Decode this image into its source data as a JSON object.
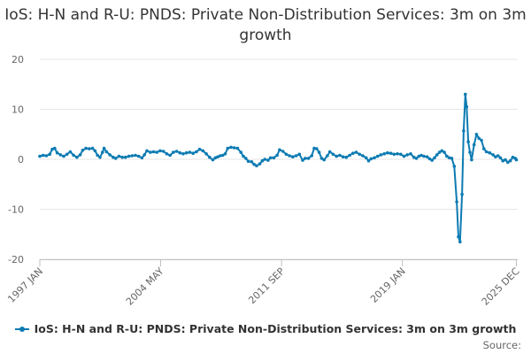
{
  "chart_data": {
    "type": "line",
    "title": "IoS: H-N and R-U: PNDS: Private Non-Distribution Services: 3m on 3m growth",
    "xlabel": "",
    "ylabel": "",
    "ylim": [
      -20,
      20
    ],
    "yticks": [
      -20,
      -10,
      0,
      10,
      20
    ],
    "x_range": [
      1997.0,
      2026.0
    ],
    "xticks": [
      {
        "label": "1997 JAN",
        "value": 1997.0
      },
      {
        "label": "2004 MAY",
        "value": 2004.33
      },
      {
        "label": "2011 SEP",
        "value": 2011.67
      },
      {
        "label": "2019 JAN",
        "value": 2019.0
      },
      {
        "label": "2025 DEC",
        "value": 2025.92
      }
    ],
    "series": [
      {
        "name": "IoS: H-N and R-U: PNDS: Private Non-Distribution Services: 3m on 3m growth",
        "color": "#0d7bb2",
        "points": [
          [
            1997.0,
            0.6
          ],
          [
            1997.2,
            0.8
          ],
          [
            1997.4,
            0.7
          ],
          [
            1997.6,
            1.0
          ],
          [
            1997.75,
            2.0
          ],
          [
            1997.9,
            2.2
          ],
          [
            1998.05,
            1.3
          ],
          [
            1998.25,
            0.9
          ],
          [
            1998.45,
            0.6
          ],
          [
            1998.65,
            1.0
          ],
          [
            1998.85,
            1.5
          ],
          [
            1999.05,
            0.8
          ],
          [
            1999.25,
            0.4
          ],
          [
            1999.45,
            0.9
          ],
          [
            1999.6,
            1.8
          ],
          [
            1999.8,
            2.2
          ],
          [
            2000.0,
            2.1
          ],
          [
            2000.2,
            2.2
          ],
          [
            2000.35,
            1.7
          ],
          [
            2000.5,
            0.8
          ],
          [
            2000.65,
            0.4
          ],
          [
            2000.8,
            1.4
          ],
          [
            2000.9,
            2.2
          ],
          [
            2001.05,
            1.5
          ],
          [
            2001.25,
            0.9
          ],
          [
            2001.45,
            0.4
          ],
          [
            2001.6,
            0.2
          ],
          [
            2001.8,
            0.6
          ],
          [
            2002.0,
            0.4
          ],
          [
            2002.2,
            0.4
          ],
          [
            2002.4,
            0.6
          ],
          [
            2002.6,
            0.7
          ],
          [
            2002.8,
            0.8
          ],
          [
            2003.0,
            0.6
          ],
          [
            2003.2,
            0.3
          ],
          [
            2003.35,
            0.9
          ],
          [
            2003.5,
            1.7
          ],
          [
            2003.7,
            1.4
          ],
          [
            2003.9,
            1.5
          ],
          [
            2004.1,
            1.4
          ],
          [
            2004.3,
            1.7
          ],
          [
            2004.5,
            1.6
          ],
          [
            2004.7,
            1.1
          ],
          [
            2004.9,
            0.8
          ],
          [
            2005.1,
            1.4
          ],
          [
            2005.3,
            1.6
          ],
          [
            2005.5,
            1.3
          ],
          [
            2005.7,
            1.1
          ],
          [
            2005.9,
            1.3
          ],
          [
            2006.1,
            1.4
          ],
          [
            2006.3,
            1.2
          ],
          [
            2006.5,
            1.5
          ],
          [
            2006.7,
            2.0
          ],
          [
            2006.9,
            1.7
          ],
          [
            2007.1,
            1.1
          ],
          [
            2007.3,
            0.4
          ],
          [
            2007.5,
            -0.1
          ],
          [
            2007.65,
            0.3
          ],
          [
            2007.8,
            0.5
          ],
          [
            2007.95,
            0.7
          ],
          [
            2008.1,
            0.8
          ],
          [
            2008.25,
            1.1
          ],
          [
            2008.4,
            2.2
          ],
          [
            2008.6,
            2.4
          ],
          [
            2008.8,
            2.3
          ],
          [
            2009.0,
            2.2
          ],
          [
            2009.2,
            1.4
          ],
          [
            2009.35,
            0.6
          ],
          [
            2009.5,
            0.2
          ],
          [
            2009.65,
            -0.4
          ],
          [
            2009.85,
            -0.5
          ],
          [
            2010.0,
            -1.0
          ],
          [
            2010.15,
            -1.3
          ],
          [
            2010.35,
            -0.9
          ],
          [
            2010.5,
            -0.3
          ],
          [
            2010.65,
            0.0
          ],
          [
            2010.85,
            -0.2
          ],
          [
            2011.0,
            0.3
          ],
          [
            2011.2,
            0.3
          ],
          [
            2011.4,
            0.8
          ],
          [
            2011.55,
            1.9
          ],
          [
            2011.75,
            1.6
          ],
          [
            2011.95,
            1.0
          ],
          [
            2012.15,
            0.7
          ],
          [
            2012.35,
            0.5
          ],
          [
            2012.55,
            0.7
          ],
          [
            2012.75,
            1.0
          ],
          [
            2012.95,
            -0.2
          ],
          [
            2013.1,
            0.2
          ],
          [
            2013.3,
            0.2
          ],
          [
            2013.5,
            0.7
          ],
          [
            2013.65,
            2.2
          ],
          [
            2013.8,
            2.1
          ],
          [
            2013.95,
            1.4
          ],
          [
            2014.1,
            0.2
          ],
          [
            2014.25,
            -0.1
          ],
          [
            2014.45,
            0.7
          ],
          [
            2014.6,
            1.5
          ],
          [
            2014.8,
            1.0
          ],
          [
            2015.0,
            0.6
          ],
          [
            2015.2,
            0.8
          ],
          [
            2015.4,
            0.5
          ],
          [
            2015.6,
            0.4
          ],
          [
            2015.8,
            0.8
          ],
          [
            2016.0,
            1.2
          ],
          [
            2016.2,
            1.4
          ],
          [
            2016.4,
            1.0
          ],
          [
            2016.6,
            0.7
          ],
          [
            2016.8,
            0.3
          ],
          [
            2016.95,
            -0.3
          ],
          [
            2017.1,
            0.1
          ],
          [
            2017.3,
            0.3
          ],
          [
            2017.5,
            0.6
          ],
          [
            2017.7,
            0.9
          ],
          [
            2017.9,
            1.1
          ],
          [
            2018.1,
            1.3
          ],
          [
            2018.3,
            1.2
          ],
          [
            2018.5,
            1.0
          ],
          [
            2018.7,
            1.1
          ],
          [
            2018.9,
            1.0
          ],
          [
            2019.1,
            0.6
          ],
          [
            2019.3,
            0.9
          ],
          [
            2019.5,
            1.1
          ],
          [
            2019.7,
            0.4
          ],
          [
            2019.85,
            0.2
          ],
          [
            2020.0,
            0.6
          ],
          [
            2020.15,
            0.8
          ],
          [
            2020.3,
            0.6
          ],
          [
            2020.5,
            0.5
          ],
          [
            2020.65,
            0.1
          ],
          [
            2020.8,
            -0.2
          ],
          [
            2020.95,
            0.3
          ],
          [
            2021.1,
            0.9
          ],
          [
            2021.25,
            1.4
          ],
          [
            2021.4,
            1.7
          ],
          [
            2021.55,
            1.4
          ],
          [
            2021.7,
            0.6
          ],
          [
            2021.85,
            0.3
          ],
          [
            2022.0,
            0.2
          ],
          [
            2022.15,
            -1.4
          ],
          [
            2022.3,
            -8.5
          ],
          [
            2022.4,
            -15.5
          ],
          [
            2022.5,
            -16.5
          ],
          [
            2022.62,
            -7.0
          ],
          [
            2022.72,
            5.7
          ],
          [
            2022.82,
            13.0
          ],
          [
            2022.9,
            10.5
          ],
          [
            2023.0,
            3.5
          ],
          [
            2023.1,
            1.4
          ],
          [
            2023.2,
            -0.1
          ],
          [
            2023.35,
            2.9
          ],
          [
            2023.5,
            5.0
          ],
          [
            2023.65,
            4.2
          ],
          [
            2023.8,
            3.8
          ],
          [
            2023.95,
            2.1
          ],
          [
            2024.1,
            1.5
          ],
          [
            2024.3,
            1.3
          ],
          [
            2024.5,
            0.9
          ],
          [
            2024.65,
            0.5
          ],
          [
            2024.8,
            0.7
          ],
          [
            2024.95,
            0.3
          ],
          [
            2025.1,
            -0.3
          ],
          [
            2025.25,
            -0.1
          ],
          [
            2025.4,
            -0.6
          ],
          [
            2025.55,
            -0.3
          ],
          [
            2025.7,
            0.4
          ],
          [
            2025.85,
            0.2
          ],
          [
            2025.92,
            -0.1
          ]
        ]
      }
    ],
    "grid": true,
    "legend_position": "bottom"
  },
  "source_label": "Source:"
}
